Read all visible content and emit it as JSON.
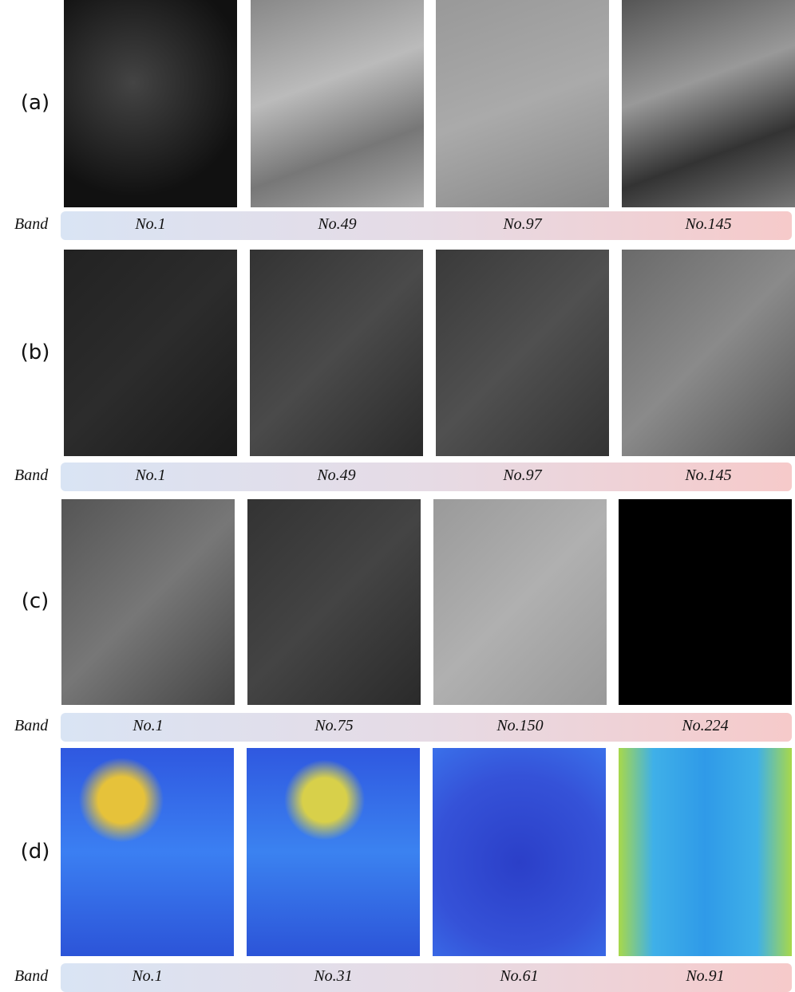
{
  "rows": [
    {
      "label": "(a)",
      "band_label": "Band",
      "bands": [
        "No.1",
        "No.49",
        "No.97",
        "No.145"
      ]
    },
    {
      "label": "(b)",
      "band_label": "Band",
      "bands": [
        "No.1",
        "No.49",
        "No.97",
        "No.145"
      ]
    },
    {
      "label": "(c)",
      "band_label": "Band",
      "bands": [
        "No.1",
        "No.75",
        "No.150",
        "No.224"
      ]
    },
    {
      "label": "(d)",
      "band_label": "Band",
      "bands": [
        "No.1",
        "No.31",
        "No.61",
        "No.91"
      ]
    }
  ]
}
